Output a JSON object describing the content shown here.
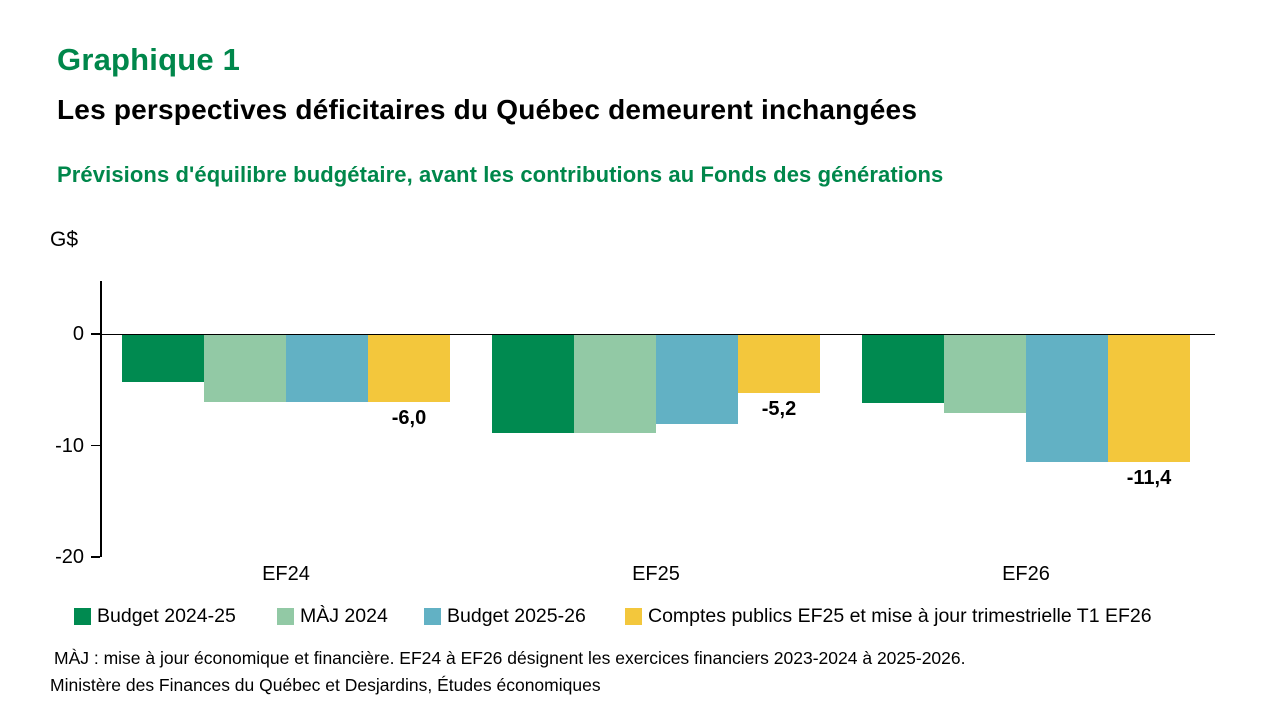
{
  "header": {
    "title": "Graphique 1",
    "subtitle": "Les perspectives déficitaires du Québec demeurent inchangées",
    "description": "Prévisions d'équilibre budgétaire, avant les contributions au Fonds des générations"
  },
  "colors": {
    "title_green": "#00874B",
    "dark_green": "#008A50",
    "light_green": "#92C9A5",
    "blue": "#62B1C4",
    "yellow": "#F3C73C",
    "axis_black": "#000000"
  },
  "chart_data": {
    "type": "bar",
    "title": "Prévisions d'équilibre budgétaire, avant les contributions au Fonds des générations",
    "unit_label": "G$",
    "categories": [
      "EF24",
      "EF25",
      "EF26"
    ],
    "series": [
      {
        "name": "Budget 2024-25",
        "color_key": "dark_green",
        "values": [
          -4.2,
          -8.8,
          -6.1
        ]
      },
      {
        "name": "MÀJ 2024",
        "color_key": "light_green",
        "values": [
          -6.0,
          -8.8,
          -7.0
        ]
      },
      {
        "name": "Budget 2025-26",
        "color_key": "blue",
        "values": [
          -6.0,
          -8.0,
          -11.4
        ]
      },
      {
        "name": "Comptes publics EF25 et mise à jour trimestrielle T1 EF26",
        "color_key": "yellow",
        "values": [
          -6.0,
          -5.2,
          -11.4
        ]
      }
    ],
    "bar_labels": [
      "-6,0",
      "-5,2",
      "-11,4"
    ],
    "y_ticks": [
      "0",
      "-10",
      "-20"
    ],
    "y_tick_values": [
      0,
      -10,
      -20
    ],
    "ylim": [
      -20,
      2
    ],
    "grid": false,
    "legend_position": "bottom"
  },
  "footnotes": {
    "note": "MÀJ : mise à jour économique et financière. EF24 à EF26 désignent les exercices financiers 2023-2024 à 2025-2026.",
    "source": "Ministère des Finances du Québec et Desjardins, Études économiques"
  }
}
